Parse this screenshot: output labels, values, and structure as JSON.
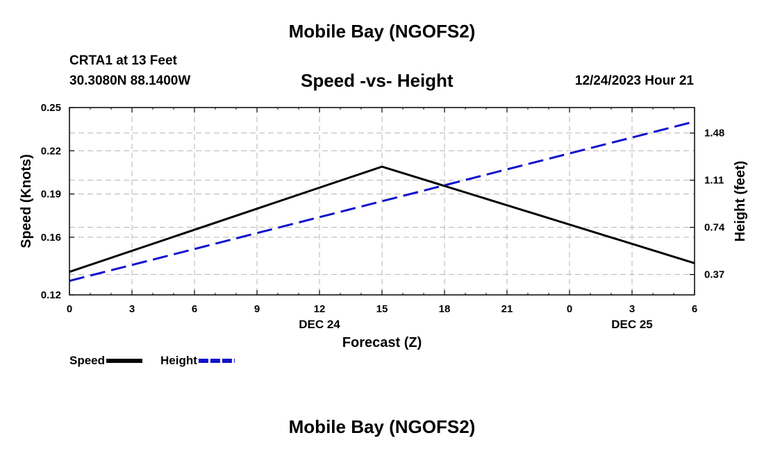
{
  "header": {
    "title": "Mobile Bay (NGOFS2)",
    "station": "CRTA1 at 13 Feet",
    "coords": "30.3080N  88.1400W",
    "subtitle": "Speed -vs- Height",
    "datetime": "12/24/2023 Hour 21"
  },
  "footer": {
    "title": "Mobile Bay (NGOFS2)"
  },
  "chart_data": {
    "type": "line",
    "xlabel": "Forecast (Z)",
    "ylabel": "Speed (Knots)",
    "y2label": "Height (feet)",
    "x": [
      0,
      15,
      30
    ],
    "x_tick_labels": [
      "0",
      "3",
      "6",
      "9",
      "12",
      "15",
      "18",
      "21",
      "0",
      "3",
      "6"
    ],
    "x_date_labels": [
      {
        "label": "DEC 24",
        "tick": 12
      },
      {
        "label": "DEC 25",
        "tick": 27
      }
    ],
    "ylim": [
      0.12,
      0.25
    ],
    "y_ticks": [
      "0.12",
      "0.16",
      "0.19",
      "0.22",
      "0.25"
    ],
    "y2lim": [
      0.21,
      1.68
    ],
    "y2_ticks": [
      "0.37",
      "0.74",
      "1.11",
      "1.48"
    ],
    "grid": true,
    "legend_position": "bottom-left",
    "series": [
      {
        "name": "Speed",
        "axis": "left",
        "color": "#000000",
        "dash": "solid",
        "x": [
          0,
          15,
          30
        ],
        "values": [
          0.136,
          0.209,
          0.142
        ]
      },
      {
        "name": "Height",
        "axis": "right",
        "color": "#1010cc",
        "dash": "dashed",
        "x": [
          0,
          30
        ],
        "values": [
          0.32,
          1.57
        ]
      }
    ]
  }
}
